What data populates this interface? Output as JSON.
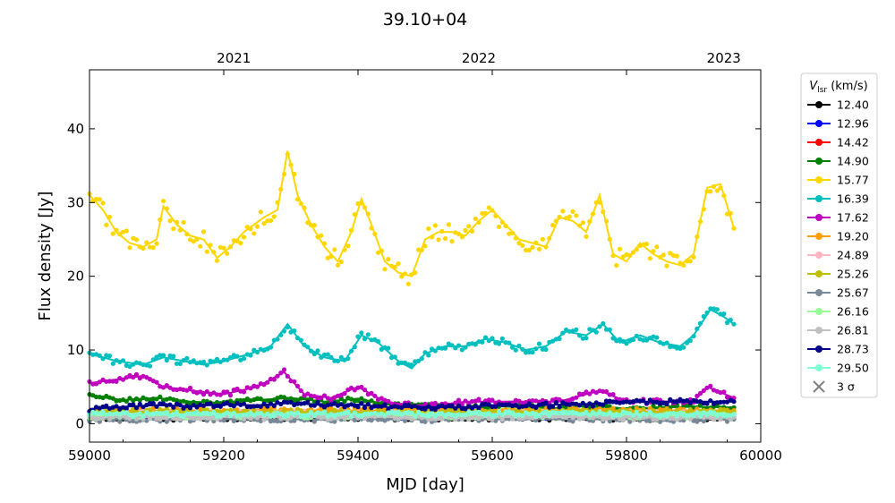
{
  "chart_data": {
    "type": "line",
    "title": "39.10+04",
    "xlabel": "MJD [day]",
    "ylabel": "Flux density [Jy]",
    "xlim": [
      59000,
      60000
    ],
    "ylim": [
      -2.5,
      48
    ],
    "xticks": [
      59000,
      59200,
      59400,
      59600,
      59800,
      60000
    ],
    "yticks": [
      0,
      10,
      20,
      30,
      40
    ],
    "top_axis": {
      "ticks": [
        {
          "label": "2021",
          "mjd": 59215
        },
        {
          "label": "2022",
          "mjd": 59580
        },
        {
          "label": "2023",
          "mjd": 59945
        }
      ]
    },
    "grid": false,
    "legend": {
      "placement": "outside-right",
      "title": "V_lsr (km/s)",
      "title_main": "V",
      "title_sub": "lsr",
      "title_unit": " (km/s)",
      "extra_entry": {
        "label": "3 σ",
        "marker": "x",
        "color": "#808080"
      }
    },
    "series": [
      {
        "name": "12.40",
        "color": "#000000",
        "x": [
          59000,
          59960
        ],
        "y": [
          0.8,
          0.8
        ]
      },
      {
        "name": "12.96",
        "color": "#0000ff",
        "x": [
          59000,
          59960
        ],
        "y": [
          1.0,
          1.0
        ]
      },
      {
        "name": "14.42",
        "color": "#ff0000",
        "x": [
          59000,
          59960
        ],
        "y": [
          1.2,
          1.2
        ]
      },
      {
        "name": "14.90",
        "color": "#008000",
        "x": [
          59000,
          59050,
          59100,
          59150,
          59200,
          59250,
          59300,
          59350,
          59400,
          59450,
          59500,
          59550,
          59600,
          59650,
          59700,
          59750,
          59800,
          59850,
          59900,
          59960
        ],
        "y": [
          3.8,
          3.2,
          3.5,
          3.0,
          2.8,
          3.2,
          3.5,
          3.0,
          3.4,
          2.5,
          2.3,
          2.2,
          2.4,
          2.2,
          2.1,
          2.5,
          2.0,
          2.2,
          2.3,
          2.2
        ]
      },
      {
        "name": "15.77",
        "color": "#ffd700",
        "x": [
          59000,
          59020,
          59040,
          59060,
          59080,
          59100,
          59110,
          59130,
          59150,
          59170,
          59190,
          59210,
          59230,
          59260,
          59280,
          59295,
          59310,
          59330,
          59350,
          59370,
          59390,
          59405,
          59420,
          59440,
          59460,
          59480,
          59500,
          59520,
          59540,
          59560,
          59580,
          59600,
          59620,
          59640,
          59660,
          59680,
          59700,
          59720,
          59740,
          59760,
          59780,
          59800,
          59820,
          59840,
          59860,
          59880,
          59900,
          59920,
          59940,
          59960
        ],
        "y": [
          31,
          29,
          26,
          24.5,
          24,
          25,
          29.5,
          27,
          25.5,
          25,
          22.5,
          24,
          26,
          28,
          29,
          37,
          31,
          27,
          24,
          22,
          26,
          30.5,
          27,
          22,
          20.5,
          20,
          25,
          26,
          26,
          25.5,
          27.5,
          29,
          27,
          25,
          24.5,
          24,
          28,
          27.5,
          26,
          31,
          23,
          22,
          24.5,
          23,
          22,
          21.5,
          23,
          32,
          32.5,
          26.5
        ]
      },
      {
        "name": "16.39",
        "color": "#00bfbf",
        "x": [
          59000,
          59040,
          59080,
          59110,
          59140,
          59170,
          59200,
          59240,
          59270,
          59295,
          59320,
          59350,
          59380,
          59405,
          59430,
          59460,
          59480,
          59500,
          59530,
          59560,
          59590,
          59620,
          59650,
          59680,
          59710,
          59740,
          59765,
          59790,
          59820,
          59850,
          59880,
          59900,
          59925,
          59945,
          59960
        ],
        "y": [
          9.5,
          8.5,
          8,
          9,
          8.5,
          8,
          8.5,
          9.5,
          10.5,
          13.5,
          10.5,
          9,
          8.5,
          12,
          11,
          8.5,
          7.5,
          9.5,
          10.5,
          10.5,
          11.5,
          11,
          10,
          10.5,
          12.5,
          12,
          13.5,
          11,
          12,
          11,
          10.5,
          12,
          15.5,
          14.5,
          13.5
        ]
      },
      {
        "name": "17.62",
        "color": "#bf00bf",
        "x": [
          59000,
          59040,
          59080,
          59110,
          59150,
          59200,
          59250,
          59290,
          59320,
          59360,
          59400,
          59440,
          59480,
          59520,
          59560,
          59600,
          59650,
          59700,
          59760,
          59800,
          59850,
          59900,
          59920,
          59960
        ],
        "y": [
          5.5,
          6,
          6.5,
          5,
          4.5,
          4,
          5,
          7,
          4,
          3.5,
          5,
          3,
          2.5,
          2.5,
          3,
          3,
          3,
          3,
          4.5,
          3,
          3,
          3,
          5,
          3.5
        ]
      },
      {
        "name": "19.20",
        "color": "#ff9f00",
        "x": [
          59000,
          59960
        ],
        "y": [
          1.8,
          1.8
        ]
      },
      {
        "name": "24.89",
        "color": "#ffb6c1",
        "x": [
          59000,
          59960
        ],
        "y": [
          1.4,
          1.4
        ]
      },
      {
        "name": "25.26",
        "color": "#bfbf00",
        "x": [
          59000,
          59960
        ],
        "y": [
          1.6,
          1.6
        ]
      },
      {
        "name": "25.67",
        "color": "#778899",
        "x": [
          59000,
          59960
        ],
        "y": [
          0.6,
          0.6
        ]
      },
      {
        "name": "26.16",
        "color": "#98fb98",
        "x": [
          59000,
          59960
        ],
        "y": [
          1.1,
          1.1
        ]
      },
      {
        "name": "26.81",
        "color": "#c0c0c0",
        "x": [
          59000,
          59960
        ],
        "y": [
          0.9,
          0.9
        ]
      },
      {
        "name": "28.73",
        "color": "#00008b",
        "x": [
          59000,
          59050,
          59100,
          59150,
          59200,
          59250,
          59300,
          59350,
          59400,
          59450,
          59500,
          59550,
          59600,
          59650,
          59700,
          59750,
          59800,
          59850,
          59900,
          59960
        ],
        "y": [
          2.0,
          2.3,
          2.5,
          2.4,
          2.6,
          2.5,
          2.8,
          2.5,
          2.6,
          2.2,
          2.3,
          2.2,
          2.5,
          2.4,
          2.6,
          2.7,
          2.9,
          3.0,
          3.0,
          3.0
        ]
      },
      {
        "name": "29.50",
        "color": "#7fffd4",
        "x": [
          59000,
          59960
        ],
        "y": [
          1.3,
          1.3
        ]
      }
    ]
  }
}
